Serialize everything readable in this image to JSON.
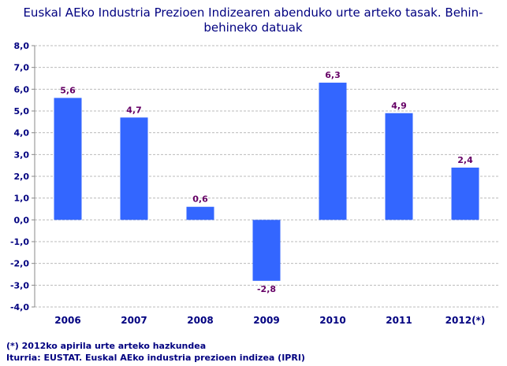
{
  "chart_data": {
    "type": "bar",
    "title_lines": [
      "Euskal AEko Industria Prezioen Indizearen abenduko urte arteko tasak.  Behin-",
      "behineko datuak"
    ],
    "categories": [
      "2006",
      "2007",
      "2008",
      "2009",
      "2010",
      "2011",
      "2012(*)"
    ],
    "values": [
      5.6,
      4.7,
      0.6,
      -2.8,
      6.3,
      4.9,
      2.4
    ],
    "data_labels": [
      "5,6",
      "4,7",
      "0,6",
      "-2,8",
      "6,3",
      "4,9",
      "2,4"
    ],
    "ylim": [
      -4,
      8
    ],
    "yticks": [
      "8,0",
      "7,0",
      "6,0",
      "5,0",
      "4,0",
      "3,0",
      "2,0",
      "1,0",
      "0,0",
      "-1,0",
      "-2,0",
      "-3,0",
      "-4,0"
    ],
    "grid": true,
    "bar_color": "#3366ff",
    "label_color": "#660066",
    "text_color": "#000080"
  },
  "notes": {
    "footnote": "(*) 2012ko apirila urte arteko hazkundea",
    "source": "Iturria: EUSTAT. Euskal AEko industria prezioen indizea (IPRI)"
  }
}
